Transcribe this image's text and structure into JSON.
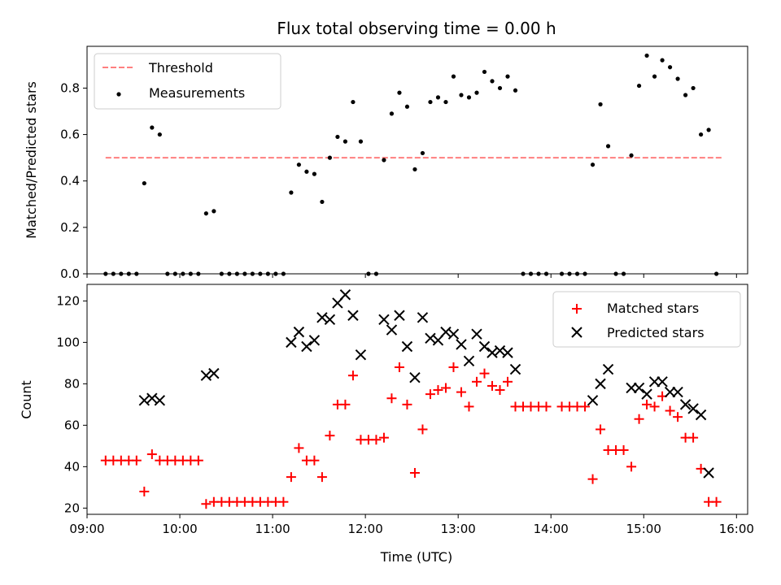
{
  "chart_data": [
    {
      "type": "scatter",
      "title": "Flux total observing time = 0.00 h",
      "xlabel": "",
      "ylabel": "Matched/Predicted stars",
      "xlim_hours": [
        9.0,
        16.12
      ],
      "ylim": [
        0,
        0.98
      ],
      "yticks": [
        0.0,
        0.2,
        0.4,
        0.6,
        0.8
      ],
      "yticklabels": [
        "0.0",
        "0.2",
        "0.4",
        "0.6",
        "0.8"
      ],
      "legend_location": "upper-left",
      "threshold": {
        "name": "Threshold",
        "y": 0.5,
        "x_start": "09:12",
        "x_end": "15:51",
        "color": "#ff7f7f",
        "style": "dashed"
      },
      "series": [
        {
          "name": "Measurements",
          "color": "#000000",
          "marker": "dot",
          "points": [
            {
              "t": "09:12",
              "v": 0.0
            },
            {
              "t": "09:17",
              "v": 0.0
            },
            {
              "t": "09:22",
              "v": 0.0
            },
            {
              "t": "09:27",
              "v": 0.0
            },
            {
              "t": "09:32",
              "v": 0.0
            },
            {
              "t": "09:37",
              "v": 0.39
            },
            {
              "t": "09:42",
              "v": 0.63
            },
            {
              "t": "09:47",
              "v": 0.6
            },
            {
              "t": "09:52",
              "v": 0.0
            },
            {
              "t": "09:57",
              "v": 0.0
            },
            {
              "t": "10:02",
              "v": 0.0
            },
            {
              "t": "10:07",
              "v": 0.0
            },
            {
              "t": "10:12",
              "v": 0.0
            },
            {
              "t": "10:17",
              "v": 0.26
            },
            {
              "t": "10:22",
              "v": 0.27
            },
            {
              "t": "10:27",
              "v": 0.0
            },
            {
              "t": "10:32",
              "v": 0.0
            },
            {
              "t": "10:37",
              "v": 0.0
            },
            {
              "t": "10:42",
              "v": 0.0
            },
            {
              "t": "10:47",
              "v": 0.0
            },
            {
              "t": "10:52",
              "v": 0.0
            },
            {
              "t": "10:57",
              "v": 0.0
            },
            {
              "t": "11:02",
              "v": 0.0
            },
            {
              "t": "11:07",
              "v": 0.0
            },
            {
              "t": "11:12",
              "v": 0.35
            },
            {
              "t": "11:17",
              "v": 0.47
            },
            {
              "t": "11:22",
              "v": 0.44
            },
            {
              "t": "11:27",
              "v": 0.43
            },
            {
              "t": "11:32",
              "v": 0.31
            },
            {
              "t": "11:37",
              "v": 0.5
            },
            {
              "t": "11:42",
              "v": 0.59
            },
            {
              "t": "11:47",
              "v": 0.57
            },
            {
              "t": "11:52",
              "v": 0.74
            },
            {
              "t": "11:57",
              "v": 0.57
            },
            {
              "t": "12:02",
              "v": 0.0
            },
            {
              "t": "12:07",
              "v": 0.0
            },
            {
              "t": "12:12",
              "v": 0.49
            },
            {
              "t": "12:17",
              "v": 0.69
            },
            {
              "t": "12:22",
              "v": 0.78
            },
            {
              "t": "12:27",
              "v": 0.72
            },
            {
              "t": "12:32",
              "v": 0.45
            },
            {
              "t": "12:37",
              "v": 0.52
            },
            {
              "t": "12:42",
              "v": 0.74
            },
            {
              "t": "12:47",
              "v": 0.76
            },
            {
              "t": "12:52",
              "v": 0.74
            },
            {
              "t": "12:57",
              "v": 0.85
            },
            {
              "t": "13:02",
              "v": 0.77
            },
            {
              "t": "13:07",
              "v": 0.76
            },
            {
              "t": "13:12",
              "v": 0.78
            },
            {
              "t": "13:17",
              "v": 0.87
            },
            {
              "t": "13:22",
              "v": 0.83
            },
            {
              "t": "13:27",
              "v": 0.8
            },
            {
              "t": "13:32",
              "v": 0.85
            },
            {
              "t": "13:37",
              "v": 0.79
            },
            {
              "t": "13:42",
              "v": 0.0
            },
            {
              "t": "13:47",
              "v": 0.0
            },
            {
              "t": "13:52",
              "v": 0.0
            },
            {
              "t": "13:57",
              "v": 0.0
            },
            {
              "t": "14:07",
              "v": 0.0
            },
            {
              "t": "14:12",
              "v": 0.0
            },
            {
              "t": "14:17",
              "v": 0.0
            },
            {
              "t": "14:22",
              "v": 0.0
            },
            {
              "t": "14:27",
              "v": 0.47
            },
            {
              "t": "14:32",
              "v": 0.73
            },
            {
              "t": "14:37",
              "v": 0.55
            },
            {
              "t": "14:42",
              "v": 0.0
            },
            {
              "t": "14:47",
              "v": 0.0
            },
            {
              "t": "14:52",
              "v": 0.51
            },
            {
              "t": "14:57",
              "v": 0.81
            },
            {
              "t": "15:02",
              "v": 0.94
            },
            {
              "t": "15:07",
              "v": 0.85
            },
            {
              "t": "15:12",
              "v": 0.92
            },
            {
              "t": "15:17",
              "v": 0.89
            },
            {
              "t": "15:22",
              "v": 0.84
            },
            {
              "t": "15:27",
              "v": 0.77
            },
            {
              "t": "15:32",
              "v": 0.8
            },
            {
              "t": "15:37",
              "v": 0.6
            },
            {
              "t": "15:42",
              "v": 0.62
            },
            {
              "t": "15:47",
              "v": 0.0
            }
          ]
        }
      ]
    },
    {
      "type": "scatter",
      "title": "",
      "xlabel": "Time (UTC)",
      "ylabel": "Count",
      "xlim_hours": [
        9.0,
        16.12
      ],
      "ylim": [
        17,
        128
      ],
      "xticks_hours": [
        9,
        10,
        11,
        12,
        13,
        14,
        15,
        16
      ],
      "xticklabels": [
        "09:00",
        "10:00",
        "11:00",
        "12:00",
        "13:00",
        "14:00",
        "15:00",
        "16:00"
      ],
      "yticks": [
        20,
        40,
        60,
        80,
        100,
        120
      ],
      "yticklabels": [
        "20",
        "40",
        "60",
        "80",
        "100",
        "120"
      ],
      "legend_location": "upper-right",
      "series": [
        {
          "name": "Matched stars",
          "color": "#ff0000",
          "marker": "plus",
          "points": [
            {
              "t": "09:12",
              "v": 43
            },
            {
              "t": "09:17",
              "v": 43
            },
            {
              "t": "09:22",
              "v": 43
            },
            {
              "t": "09:27",
              "v": 43
            },
            {
              "t": "09:32",
              "v": 43
            },
            {
              "t": "09:37",
              "v": 28
            },
            {
              "t": "09:42",
              "v": 46
            },
            {
              "t": "09:47",
              "v": 43
            },
            {
              "t": "09:52",
              "v": 43
            },
            {
              "t": "09:57",
              "v": 43
            },
            {
              "t": "10:02",
              "v": 43
            },
            {
              "t": "10:07",
              "v": 43
            },
            {
              "t": "10:12",
              "v": 43
            },
            {
              "t": "10:17",
              "v": 22
            },
            {
              "t": "10:22",
              "v": 23
            },
            {
              "t": "10:27",
              "v": 23
            },
            {
              "t": "10:32",
              "v": 23
            },
            {
              "t": "10:37",
              "v": 23
            },
            {
              "t": "10:42",
              "v": 23
            },
            {
              "t": "10:47",
              "v": 23
            },
            {
              "t": "10:52",
              "v": 23
            },
            {
              "t": "10:57",
              "v": 23
            },
            {
              "t": "11:02",
              "v": 23
            },
            {
              "t": "11:07",
              "v": 23
            },
            {
              "t": "11:12",
              "v": 35
            },
            {
              "t": "11:17",
              "v": 49
            },
            {
              "t": "11:22",
              "v": 43
            },
            {
              "t": "11:27",
              "v": 43
            },
            {
              "t": "11:32",
              "v": 35
            },
            {
              "t": "11:37",
              "v": 55
            },
            {
              "t": "11:42",
              "v": 70
            },
            {
              "t": "11:47",
              "v": 70
            },
            {
              "t": "11:52",
              "v": 84
            },
            {
              "t": "11:57",
              "v": 53
            },
            {
              "t": "12:02",
              "v": 53
            },
            {
              "t": "12:07",
              "v": 53
            },
            {
              "t": "12:12",
              "v": 54
            },
            {
              "t": "12:17",
              "v": 73
            },
            {
              "t": "12:22",
              "v": 88
            },
            {
              "t": "12:27",
              "v": 70
            },
            {
              "t": "12:32",
              "v": 37
            },
            {
              "t": "12:37",
              "v": 58
            },
            {
              "t": "12:42",
              "v": 75
            },
            {
              "t": "12:47",
              "v": 77
            },
            {
              "t": "12:52",
              "v": 78
            },
            {
              "t": "12:57",
              "v": 88
            },
            {
              "t": "13:02",
              "v": 76
            },
            {
              "t": "13:07",
              "v": 69
            },
            {
              "t": "13:12",
              "v": 81
            },
            {
              "t": "13:17",
              "v": 85
            },
            {
              "t": "13:22",
              "v": 79
            },
            {
              "t": "13:27",
              "v": 77
            },
            {
              "t": "13:32",
              "v": 81
            },
            {
              "t": "13:37",
              "v": 69
            },
            {
              "t": "13:42",
              "v": 69
            },
            {
              "t": "13:47",
              "v": 69
            },
            {
              "t": "13:52",
              "v": 69
            },
            {
              "t": "13:57",
              "v": 69
            },
            {
              "t": "14:07",
              "v": 69
            },
            {
              "t": "14:12",
              "v": 69
            },
            {
              "t": "14:17",
              "v": 69
            },
            {
              "t": "14:22",
              "v": 69
            },
            {
              "t": "14:27",
              "v": 34
            },
            {
              "t": "14:32",
              "v": 58
            },
            {
              "t": "14:37",
              "v": 48
            },
            {
              "t": "14:42",
              "v": 48
            },
            {
              "t": "14:47",
              "v": 48
            },
            {
              "t": "14:52",
              "v": 40
            },
            {
              "t": "14:57",
              "v": 63
            },
            {
              "t": "15:02",
              "v": 70
            },
            {
              "t": "15:07",
              "v": 69
            },
            {
              "t": "15:12",
              "v": 74
            },
            {
              "t": "15:17",
              "v": 67
            },
            {
              "t": "15:22",
              "v": 64
            },
            {
              "t": "15:27",
              "v": 54
            },
            {
              "t": "15:32",
              "v": 54
            },
            {
              "t": "15:37",
              "v": 39
            },
            {
              "t": "15:42",
              "v": 23
            },
            {
              "t": "15:47",
              "v": 23
            }
          ]
        },
        {
          "name": "Predicted stars",
          "color": "#000000",
          "marker": "cross",
          "points": [
            {
              "t": "09:37",
              "v": 72
            },
            {
              "t": "09:42",
              "v": 73
            },
            {
              "t": "09:47",
              "v": 72
            },
            {
              "t": "10:17",
              "v": 84
            },
            {
              "t": "10:22",
              "v": 85
            },
            {
              "t": "11:12",
              "v": 100
            },
            {
              "t": "11:17",
              "v": 105
            },
            {
              "t": "11:22",
              "v": 98
            },
            {
              "t": "11:27",
              "v": 101
            },
            {
              "t": "11:32",
              "v": 112
            },
            {
              "t": "11:37",
              "v": 111
            },
            {
              "t": "11:42",
              "v": 119
            },
            {
              "t": "11:47",
              "v": 123
            },
            {
              "t": "11:52",
              "v": 113
            },
            {
              "t": "11:57",
              "v": 94
            },
            {
              "t": "12:12",
              "v": 111
            },
            {
              "t": "12:17",
              "v": 106
            },
            {
              "t": "12:22",
              "v": 113
            },
            {
              "t": "12:27",
              "v": 98
            },
            {
              "t": "12:32",
              "v": 83
            },
            {
              "t": "12:37",
              "v": 112
            },
            {
              "t": "12:42",
              "v": 102
            },
            {
              "t": "12:47",
              "v": 101
            },
            {
              "t": "12:52",
              "v": 105
            },
            {
              "t": "12:57",
              "v": 104
            },
            {
              "t": "13:02",
              "v": 99
            },
            {
              "t": "13:07",
              "v": 91
            },
            {
              "t": "13:12",
              "v": 104
            },
            {
              "t": "13:17",
              "v": 98
            },
            {
              "t": "13:22",
              "v": 95
            },
            {
              "t": "13:27",
              "v": 96
            },
            {
              "t": "13:32",
              "v": 95
            },
            {
              "t": "13:37",
              "v": 87
            },
            {
              "t": "14:27",
              "v": 72
            },
            {
              "t": "14:32",
              "v": 80
            },
            {
              "t": "14:37",
              "v": 87
            },
            {
              "t": "14:52",
              "v": 78
            },
            {
              "t": "14:57",
              "v": 78
            },
            {
              "t": "15:02",
              "v": 75
            },
            {
              "t": "15:07",
              "v": 81
            },
            {
              "t": "15:12",
              "v": 81
            },
            {
              "t": "15:17",
              "v": 76
            },
            {
              "t": "15:22",
              "v": 76
            },
            {
              "t": "15:27",
              "v": 70
            },
            {
              "t": "15:32",
              "v": 68
            },
            {
              "t": "15:37",
              "v": 65
            },
            {
              "t": "15:42",
              "v": 37
            }
          ]
        }
      ]
    }
  ]
}
